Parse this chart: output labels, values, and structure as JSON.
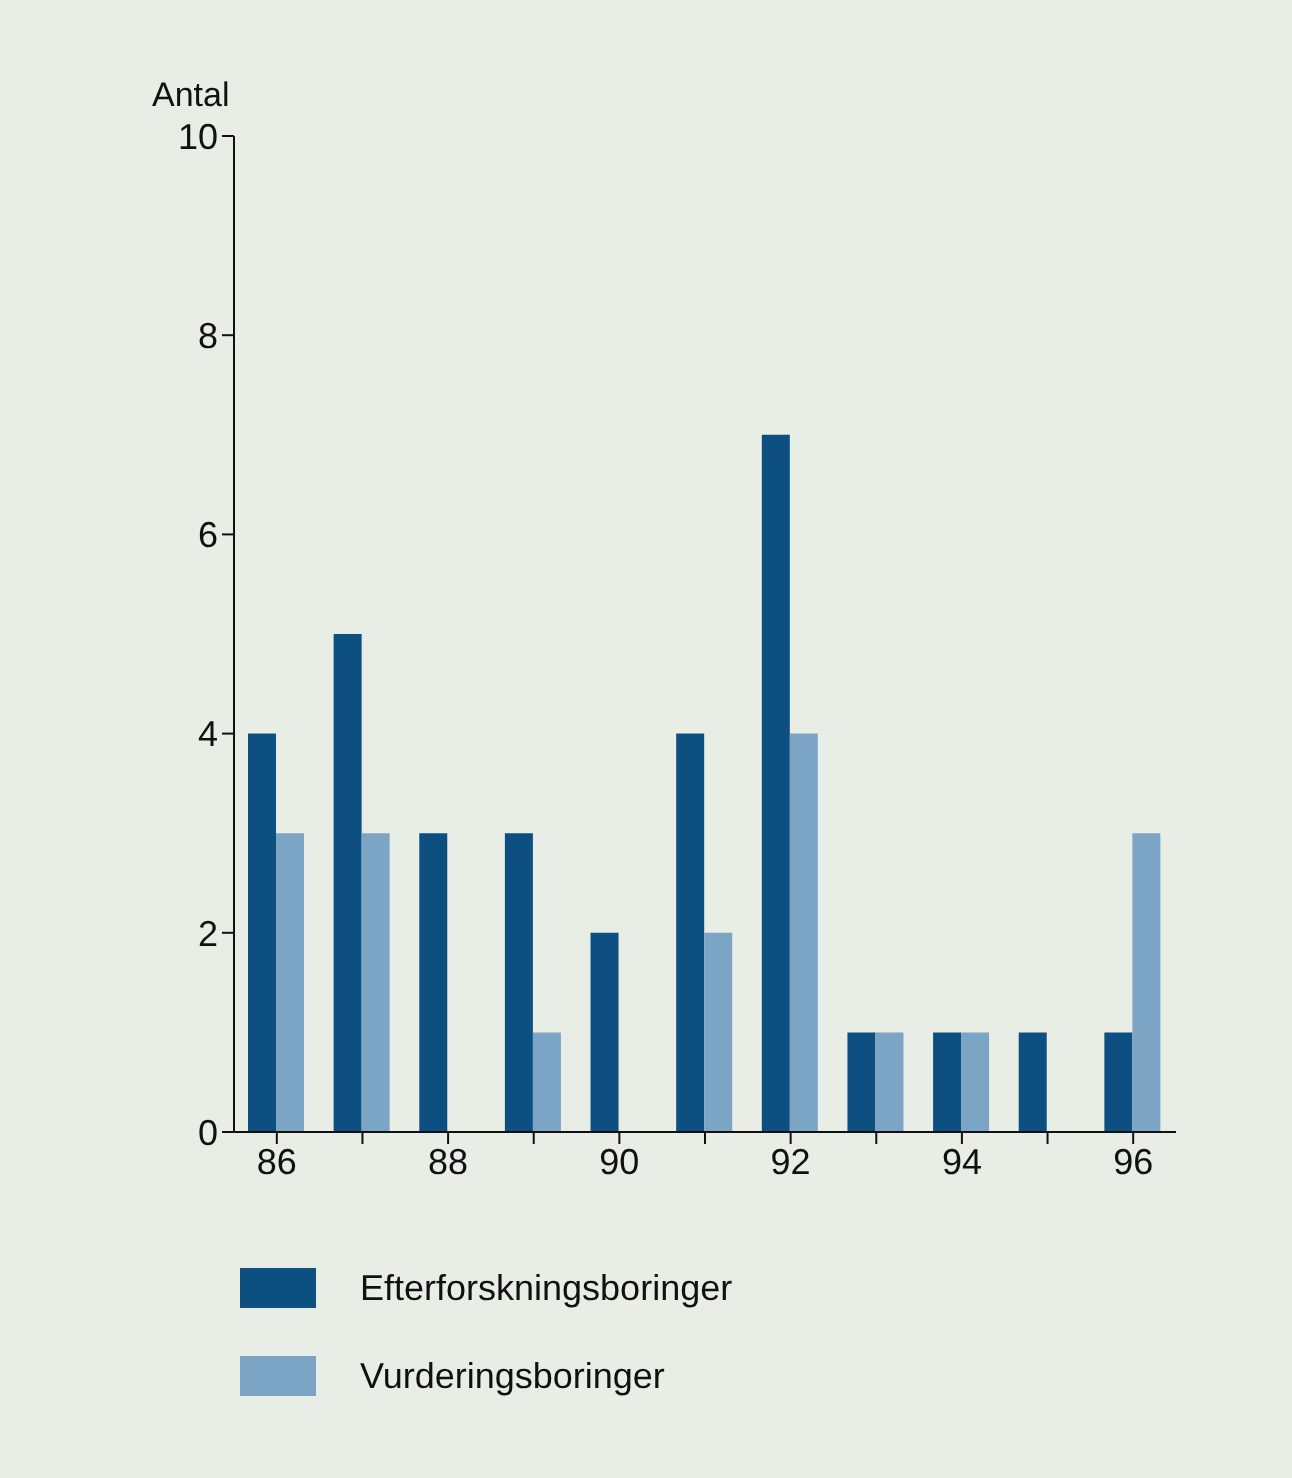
{
  "chart_data": {
    "type": "bar",
    "ylabel": "Antal",
    "categories": [
      "86",
      null,
      "88",
      null,
      "90",
      null,
      "92",
      null,
      "94",
      null,
      "96"
    ],
    "series": [
      {
        "name": "Efterforskningsboringer",
        "color": "#0d4f80",
        "values": [
          4,
          5,
          3,
          3,
          2,
          4,
          7,
          1,
          1,
          1,
          1
        ]
      },
      {
        "name": "Vurderingsboringer",
        "color": "#7ca4c4",
        "values": [
          3,
          3,
          0,
          1,
          0,
          2,
          4,
          1,
          1,
          0,
          3
        ]
      }
    ],
    "ylim": [
      0,
      10
    ],
    "yticks": [
      0,
      2,
      4,
      6,
      8,
      10
    ],
    "grid": false,
    "legend": "bottom left"
  }
}
